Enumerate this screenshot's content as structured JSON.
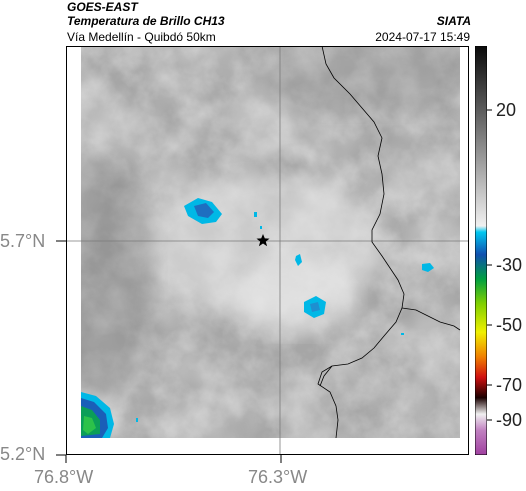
{
  "header": {
    "satellite": "GOES-EAST",
    "product": "Temperatura de Brillo CH13",
    "region": "Vía Medellín - Quibdó 50km",
    "agency": "SIATA",
    "timestamp": "2024-07-17 15:49"
  },
  "axes": {
    "x_ticks": [
      "76.8°W",
      "76.3°W"
    ],
    "y_ticks": [
      "5.7°N",
      "5.2°N"
    ]
  },
  "colorbar": {
    "ticks": [
      "20",
      "-30",
      "-50",
      "-70",
      "-90"
    ]
  },
  "colors": {
    "background_gray": "#a8a8a8",
    "cold_cyan": "#00b4e0",
    "colder_blue": "#1060b0",
    "deep_green": "#10a040",
    "border_line": "#000000",
    "grid_line": "#7a7a7a",
    "frame": "#000000"
  }
}
